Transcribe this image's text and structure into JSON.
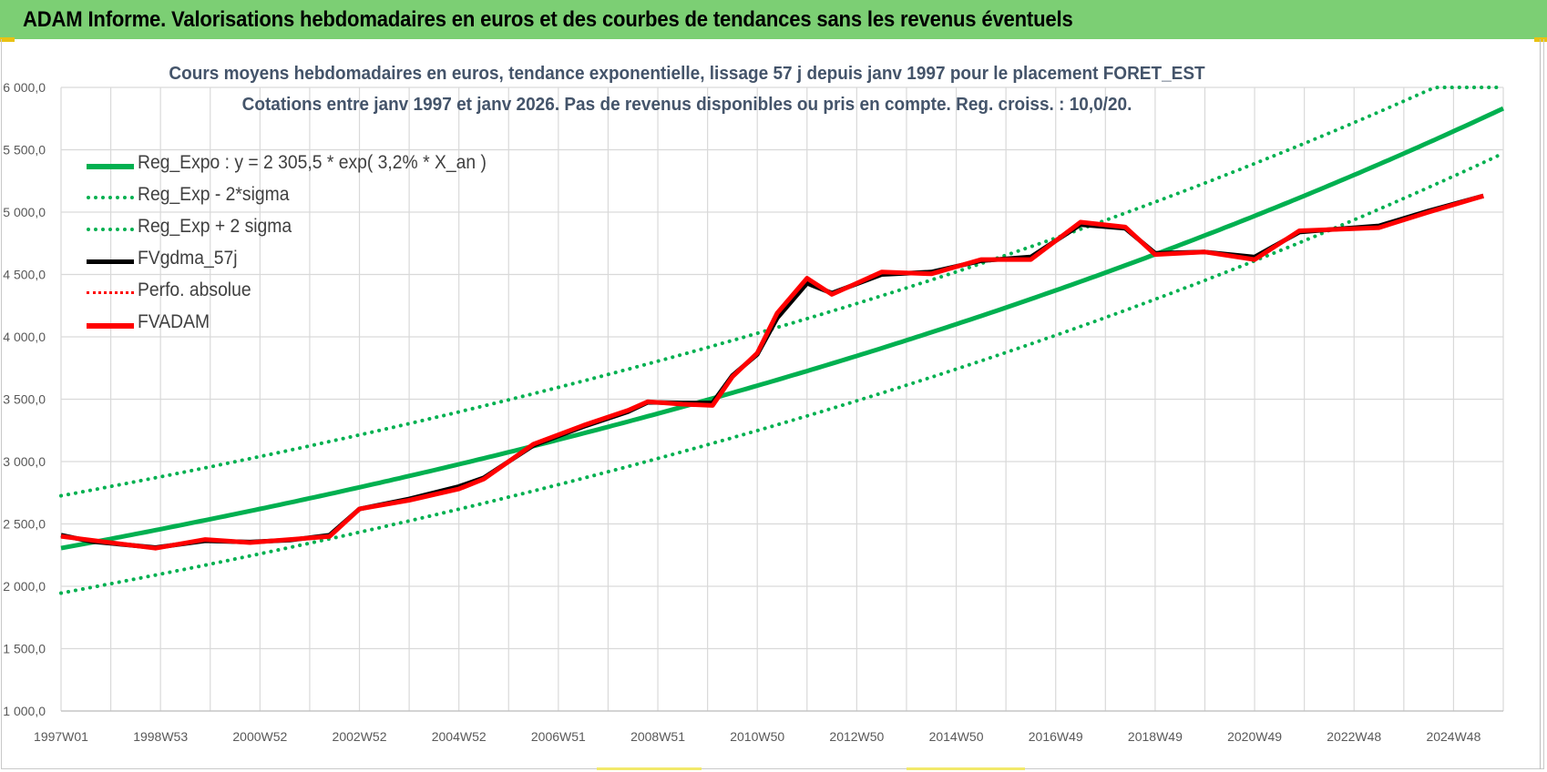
{
  "header": {
    "title": "ADAM Informe. Valorisations hebdomadaires en euros et des courbes de tendances sans les revenus éventuels"
  },
  "colors": {
    "banner": "#7ccf74",
    "reg_green": "#00b050",
    "dotted_green": "#00b050",
    "black_series": "#000000",
    "red_series": "#ff0000",
    "title_color": "#44546a"
  },
  "chart_data": {
    "type": "line",
    "title_line1": "Cours moyens hebdomadaires en euros, tendance exponentielle, lissage 57 j depuis janv 1997 pour le placement FORET_EST",
    "title_line2": "Cotations entre janv 1997 et janv 2026. Pas de revenus disponibles ou pris en compte. Reg. croiss. : 10,0/20.",
    "ylim": [
      1000,
      6000
    ],
    "y_ticks": [
      "1 000,0",
      "1 500,0",
      "2 000,0",
      "2 500,0",
      "3 000,0",
      "3 500,0",
      "4 000,0",
      "4 500,0",
      "5 000,0",
      "5 500,0",
      "6 000,0"
    ],
    "y_tick_values": [
      1000,
      1500,
      2000,
      2500,
      3000,
      3500,
      4000,
      4500,
      5000,
      5500,
      6000
    ],
    "xlim": [
      1997.0,
      2026.0
    ],
    "x_ticks": [
      "1997W01",
      "1998W53",
      "2000W52",
      "2002W52",
      "2004W52",
      "2006W51",
      "2008W51",
      "2010W50",
      "2012W50",
      "2014W50",
      "2016W49",
      "2018W49",
      "2020W49",
      "2022W48",
      "2024W48"
    ],
    "x_tick_values": [
      1997.0,
      1999.0,
      2001.0,
      2003.0,
      2005.0,
      2007.0,
      2009.0,
      2011.0,
      2013.0,
      2015.0,
      2017.0,
      2019.0,
      2021.0,
      2023.0,
      2025.0
    ],
    "grid": true,
    "series": [
      {
        "name": "Reg_Expo : y = 2 305,5 * exp( 3,2% *  X_an )",
        "style": "solid-green",
        "formula": {
          "a": 2305.5,
          "rate": 0.032,
          "offset": 0
        }
      },
      {
        "name": "Reg_Exp - 2*sigma",
        "style": "dotted-green",
        "formula": {
          "a": 2305.5,
          "rate": 0.032,
          "offset": -360
        }
      },
      {
        "name": "Reg_Exp + 2 sigma",
        "style": "dotted-green",
        "formula": {
          "a": 2305.5,
          "rate": 0.032,
          "offset": 420
        }
      },
      {
        "name": "FVgdma_57j",
        "style": "solid-black",
        "x": [
          1997.0,
          1997.6,
          1998.9,
          1999.9,
          2000.8,
          2001.6,
          2002.4,
          2003.0,
          2004.0,
          2005.0,
          2005.5,
          2006.5,
          2007.5,
          2008.4,
          2008.8,
          2009.5,
          2010.1,
          2010.5,
          2011.0,
          2011.4,
          2012.0,
          2012.5,
          2013.5,
          2014.5,
          2015.5,
          2016.5,
          2017.5,
          2018.4,
          2019.0,
          2020.0,
          2021.0,
          2021.9,
          2022.5,
          2023.5,
          2024.5,
          2025.6
        ],
        "values": [
          2410,
          2360,
          2310,
          2365,
          2355,
          2370,
          2410,
          2620,
          2700,
          2800,
          2870,
          3130,
          3280,
          3400,
          3475,
          3470,
          3470,
          3690,
          3860,
          4150,
          4430,
          4350,
          4500,
          4520,
          4610,
          4640,
          4900,
          4870,
          4670,
          4680,
          4640,
          4840,
          4860,
          4890,
          5010,
          5130
        ]
      },
      {
        "name": "Perfo. absolue",
        "style": "dotted-red",
        "x": [],
        "values": []
      },
      {
        "name": "FVADAM",
        "style": "solid-red",
        "x": [
          1997.0,
          1997.6,
          1998.9,
          1999.9,
          2000.8,
          2001.6,
          2002.4,
          2003.0,
          2004.0,
          2005.0,
          2005.5,
          2006.5,
          2007.5,
          2008.4,
          2008.8,
          2009.5,
          2010.1,
          2010.5,
          2011.0,
          2011.4,
          2012.0,
          2012.5,
          2013.5,
          2014.5,
          2015.5,
          2016.5,
          2017.5,
          2018.4,
          2019.0,
          2020.0,
          2021.0,
          2021.9,
          2022.5,
          2023.5,
          2024.5,
          2025.6
        ],
        "values": [
          2400,
          2370,
          2305,
          2375,
          2350,
          2375,
          2400,
          2620,
          2690,
          2780,
          2860,
          3140,
          3290,
          3410,
          3480,
          3460,
          3450,
          3680,
          3870,
          4190,
          4470,
          4340,
          4520,
          4505,
          4620,
          4620,
          4920,
          4880,
          4660,
          4680,
          4620,
          4850,
          4860,
          4875,
          5000,
          5130
        ]
      }
    ]
  }
}
